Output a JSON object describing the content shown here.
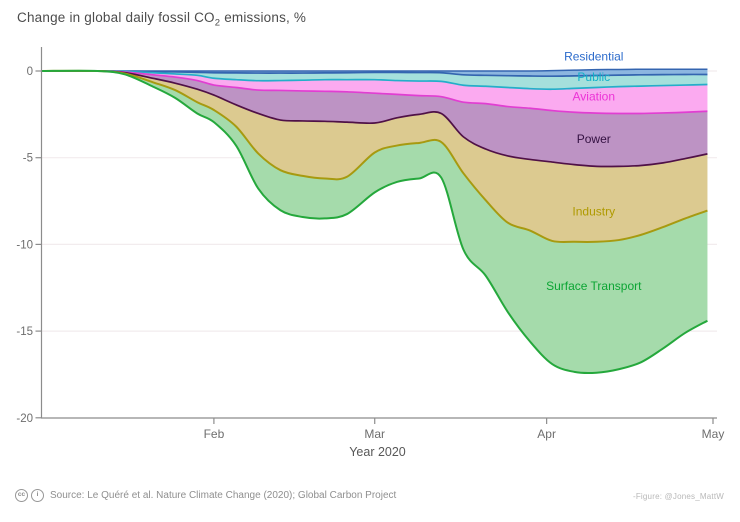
{
  "header": {
    "title_prefix": "Change in global daily fossil CO",
    "title_sub": "2",
    "title_suffix": " emissions, %"
  },
  "chart_data": {
    "type": "area",
    "stacked": true,
    "title": "Change in global daily fossil CO2 emissions, %",
    "xlabel": "Year 2020",
    "ylabel": "",
    "ylim": [
      -20,
      1
    ],
    "grid": true,
    "gridline_values": [
      0,
      -5,
      -10,
      -15
    ],
    "y_ticks": [
      0,
      -5,
      -10,
      -15,
      -20
    ],
    "x_ticks": [
      {
        "label": "Feb",
        "day": 31
      },
      {
        "label": "Mar",
        "day": 60
      },
      {
        "label": "Apr",
        "day": 91
      },
      {
        "label": "May",
        "day": 121
      }
    ],
    "x_axis_span_days": 121,
    "x_days": [
      0,
      10,
      15,
      20,
      24,
      28,
      31,
      35,
      39,
      43,
      47,
      51,
      55,
      60,
      64,
      68,
      72,
      76,
      80,
      84,
      88,
      92,
      96,
      100,
      104,
      108,
      112,
      116,
      120
    ],
    "top_boundary_offset": [
      0,
      0,
      0,
      0,
      0,
      0,
      0,
      0,
      0,
      0,
      0,
      0,
      0,
      0,
      0,
      0,
      0,
      0,
      0,
      0,
      0,
      0.02,
      0.05,
      0.08,
      0.09,
      0.1,
      0.1,
      0.1,
      0.1
    ],
    "series": [
      {
        "name": "Residential",
        "label": "Residential",
        "line_color": "#3465b0",
        "fill_color": "#8cb6e0",
        "label_color": "#2d6ccc",
        "label_day": 99.5,
        "label_value": 0.85,
        "values": [
          0,
          0,
          -0.01,
          -0.03,
          -0.05,
          -0.08,
          -0.1,
          -0.11,
          -0.12,
          -0.12,
          -0.12,
          -0.11,
          -0.1,
          -0.08,
          -0.08,
          -0.09,
          -0.1,
          -0.22,
          -0.25,
          -0.27,
          -0.29,
          -0.32,
          -0.33,
          -0.34,
          -0.33,
          -0.32,
          -0.31,
          -0.3,
          -0.3
        ]
      },
      {
        "name": "Public",
        "label": "Public",
        "line_color": "#24aec9",
        "fill_color": "#a5e0dc",
        "label_color": "#12b1c9",
        "label_day": 99.5,
        "label_value": -0.33,
        "values": [
          0,
          0,
          -0.02,
          -0.07,
          -0.12,
          -0.17,
          -0.32,
          -0.39,
          -0.44,
          -0.43,
          -0.41,
          -0.39,
          -0.4,
          -0.42,
          -0.47,
          -0.49,
          -0.5,
          -0.6,
          -0.63,
          -0.68,
          -0.73,
          -0.75,
          -0.72,
          -0.69,
          -0.66,
          -0.65,
          -0.63,
          -0.61,
          -0.58
        ]
      },
      {
        "name": "Aviation",
        "label": "Aviation",
        "line_color": "#e13ed2",
        "fill_color": "#fbaaf0",
        "label_color": "#ec33d6",
        "label_day": 99.5,
        "label_value": -1.45,
        "values": [
          0,
          0,
          -0.03,
          -0.12,
          -0.18,
          -0.3,
          -0.39,
          -0.45,
          -0.54,
          -0.57,
          -0.62,
          -0.67,
          -0.7,
          -0.78,
          -0.8,
          -0.84,
          -0.88,
          -0.98,
          -1.0,
          -1.1,
          -1.13,
          -1.23,
          -1.38,
          -1.48,
          -1.55,
          -1.58,
          -1.58,
          -1.57,
          -1.54
        ]
      },
      {
        "name": "Power",
        "label": "Power",
        "line_color": "#4f1147",
        "fill_color": "#bd93c4",
        "label_color": "#331141",
        "label_day": 99.5,
        "label_value": -3.9,
        "values": [
          0,
          0,
          -0.04,
          -0.2,
          -0.35,
          -0.5,
          -0.58,
          -1.0,
          -1.35,
          -1.71,
          -1.73,
          -1.73,
          -1.75,
          -1.72,
          -1.35,
          -1.08,
          -0.97,
          -2.0,
          -2.62,
          -2.85,
          -2.95,
          -2.97,
          -3.02,
          -3.07,
          -3.05,
          -3.0,
          -2.88,
          -2.67,
          -2.46
        ]
      },
      {
        "name": "Industry",
        "label": "Industry",
        "line_color": "#a79a10",
        "fill_color": "#dcca90",
        "label_color": "#af9a00",
        "label_day": 99.5,
        "label_value": -8.1,
        "values": [
          0,
          0,
          -0.05,
          -0.23,
          -0.4,
          -0.75,
          -0.86,
          -1.25,
          -2.31,
          -2.89,
          -3.17,
          -3.3,
          -3.15,
          -1.7,
          -1.6,
          -1.65,
          -1.65,
          -2.1,
          -2.95,
          -3.85,
          -4.1,
          -4.55,
          -4.45,
          -4.35,
          -4.25,
          -4.0,
          -3.7,
          -3.45,
          -3.27
        ]
      },
      {
        "name": "Surface Transport",
        "label": "Surface Transport",
        "line_color": "#25a83c",
        "fill_color": "#a5dbab",
        "label_color": "#0ca534",
        "label_day": 99.5,
        "label_value": -12.4,
        "values": [
          0,
          0,
          -0.05,
          -0.25,
          -0.45,
          -0.65,
          -0.7,
          -1.1,
          -2.02,
          -2.31,
          -2.37,
          -2.3,
          -2.15,
          -2.3,
          -2.1,
          -2.05,
          -2.05,
          -4.4,
          -4.35,
          -5.15,
          -6.4,
          -7.1,
          -7.5,
          -7.55,
          -7.45,
          -7.35,
          -7.0,
          -6.6,
          -6.35
        ]
      }
    ]
  },
  "footer": {
    "license_icons": [
      {
        "name": "cc",
        "glyph": "cc"
      },
      {
        "name": "by",
        "glyph": "i"
      }
    ],
    "source": "Source: Le Quéré et al. Nature Climate Change (2020); Global Carbon Project",
    "credit": "-Figure: @Jones_MattW"
  }
}
